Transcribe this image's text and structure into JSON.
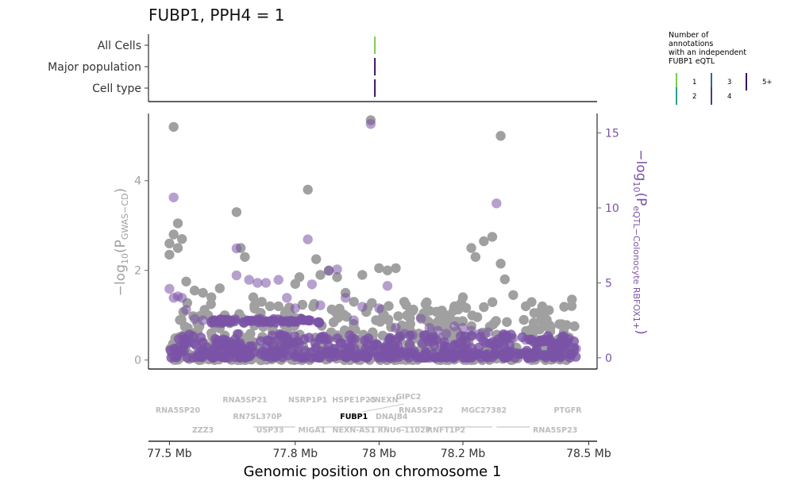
{
  "chart_data": {
    "type": "scatter",
    "title": "FUBP1, PPH4 = 1",
    "xlabel": "Genomic position on chromosome 1",
    "x_unit": "Mb",
    "xlim": [
      77.45,
      78.52
    ],
    "x_ticks": [
      77.5,
      77.8,
      78.0,
      78.2,
      78.5
    ],
    "x_tick_labels": [
      "77.5 Mb",
      "77.8 Mb",
      "78 Mb",
      "78.2 Mb",
      "78.5 Mb"
    ],
    "annotation_track": {
      "rows": [
        "All Cells",
        "Major population",
        "Cell type"
      ],
      "marks": [
        {
          "row": "All Cells",
          "x": 77.99,
          "count_category": "1",
          "color": "#7dc94f"
        },
        {
          "row": "Major population",
          "x": 77.99,
          "count_category": "5+",
          "color": "#3b0f5a"
        },
        {
          "row": "Cell type",
          "x": 77.99,
          "count_category": "5+",
          "color": "#3b0f5a"
        }
      ],
      "legend": {
        "title_lines": [
          "Number of",
          "annotations",
          "with an independent",
          "FUBP1 eQTL"
        ],
        "entries": [
          {
            "label": "1",
            "color": "#7dc94f"
          },
          {
            "label": "2",
            "color": "#2aa08a"
          },
          {
            "label": "3",
            "color": "#31688e"
          },
          {
            "label": "4",
            "color": "#433e85"
          },
          {
            "label": "5+",
            "color": "#3b0f5a"
          }
        ],
        "placement": "top-right"
      }
    },
    "left_axis": {
      "label_main": "−log",
      "label_sub": "10",
      "label_var": "(P",
      "label_var_sub": "GWAS−CD",
      "label_close": ")",
      "ylim": [
        -0.2,
        5.5
      ],
      "ticks": [
        0,
        2,
        4
      ],
      "color": "#a0a0a0"
    },
    "right_axis": {
      "label_main": "−log",
      "label_sub": "10",
      "label_var": "(P",
      "label_var_sub": "eQTL−Colonocyte RBFOX1+",
      "label_close": ")",
      "ylim": [
        -0.75,
        16.3
      ],
      "ticks": [
        0,
        5,
        10,
        15
      ],
      "color": "#7a52a6"
    },
    "series": [
      {
        "name": "GWAS-CD",
        "color": "#a0a0a0",
        "axis": "left",
        "points_estimated": [
          [
            77.51,
            5.2
          ],
          [
            77.52,
            3.05
          ],
          [
            77.51,
            2.8
          ],
          [
            77.5,
            2.6
          ],
          [
            77.52,
            2.5
          ],
          [
            77.5,
            2.35
          ],
          [
            77.53,
            2.7
          ],
          [
            77.54,
            1.75
          ],
          [
            77.56,
            1.55
          ],
          [
            77.58,
            1.5
          ],
          [
            77.6,
            1.4
          ],
          [
            77.62,
            1.6
          ],
          [
            77.66,
            3.3
          ],
          [
            77.67,
            2.5
          ],
          [
            77.68,
            2.3
          ],
          [
            77.7,
            1.4
          ],
          [
            77.72,
            1.3
          ],
          [
            77.74,
            1.2
          ],
          [
            77.76,
            1.2
          ],
          [
            77.78,
            1.1
          ],
          [
            77.8,
            1.7
          ],
          [
            77.81,
            1.85
          ],
          [
            77.83,
            3.8
          ],
          [
            77.85,
            2.25
          ],
          [
            77.86,
            1.9
          ],
          [
            77.88,
            2.0
          ],
          [
            77.9,
            1.85
          ],
          [
            77.92,
            1.5
          ],
          [
            77.94,
            1.3
          ],
          [
            77.96,
            1.9
          ],
          [
            77.98,
            5.35
          ],
          [
            78.0,
            2.05
          ],
          [
            78.02,
            2.0
          ],
          [
            78.04,
            2.05
          ],
          [
            78.06,
            1.3
          ],
          [
            78.08,
            1.1
          ],
          [
            78.1,
            0.95
          ],
          [
            78.12,
            1.1
          ],
          [
            78.14,
            0.85
          ],
          [
            78.16,
            1.0
          ],
          [
            78.18,
            1.2
          ],
          [
            78.2,
            1.4
          ],
          [
            78.22,
            2.5
          ],
          [
            78.23,
            2.3
          ],
          [
            78.25,
            2.65
          ],
          [
            78.27,
            2.75
          ],
          [
            78.29,
            2.15
          ],
          [
            78.3,
            1.8
          ],
          [
            78.32,
            1.45
          ],
          [
            78.35,
            1.2
          ],
          [
            78.37,
            1.05
          ],
          [
            78.4,
            0.9
          ],
          [
            78.43,
            0.8
          ],
          [
            78.46,
            1.35
          ],
          [
            78.29,
            5.0
          ],
          [
            78.15,
            0.75
          ],
          [
            77.6,
            0.6
          ],
          [
            77.9,
            0.55
          ],
          [
            78.05,
            0.5
          ],
          [
            78.4,
            0.4
          ]
        ]
      },
      {
        "name": "eQTL-Colonocyte RBFOX1+",
        "color": "#7a52a6",
        "axis": "right",
        "points_estimated": [
          [
            77.51,
            10.7
          ],
          [
            77.5,
            4.6
          ],
          [
            77.51,
            4.0
          ],
          [
            77.52,
            4.1
          ],
          [
            77.53,
            4.0
          ],
          [
            77.54,
            3.2
          ],
          [
            77.56,
            2.6
          ],
          [
            77.58,
            2.5
          ],
          [
            77.6,
            2.4
          ],
          [
            77.62,
            2.3
          ],
          [
            77.64,
            2.4
          ],
          [
            77.66,
            7.3
          ],
          [
            77.66,
            5.5
          ],
          [
            77.69,
            5.2
          ],
          [
            77.71,
            5.0
          ],
          [
            77.73,
            5.0
          ],
          [
            77.76,
            5.2
          ],
          [
            77.78,
            4.0
          ],
          [
            77.8,
            3.3
          ],
          [
            77.83,
            7.9
          ],
          [
            77.84,
            4.9
          ],
          [
            77.86,
            3.5
          ],
          [
            77.88,
            5.8
          ],
          [
            77.9,
            5.9
          ],
          [
            77.92,
            4.0
          ],
          [
            77.94,
            2.5
          ],
          [
            77.96,
            3.4
          ],
          [
            77.98,
            15.6
          ],
          [
            78.0,
            3.3
          ],
          [
            78.02,
            4.8
          ],
          [
            78.04,
            2.0
          ],
          [
            78.06,
            1.6
          ],
          [
            78.08,
            1.5
          ],
          [
            78.1,
            2.6
          ],
          [
            78.12,
            2.0
          ],
          [
            78.14,
            1.8
          ],
          [
            78.16,
            1.6
          ],
          [
            78.18,
            2.1
          ],
          [
            78.2,
            2.0
          ],
          [
            78.22,
            1.8
          ],
          [
            78.24,
            1.6
          ],
          [
            78.26,
            1.7
          ],
          [
            78.28,
            10.3
          ],
          [
            78.3,
            1.4
          ],
          [
            78.32,
            1.3
          ],
          [
            78.35,
            1.2
          ],
          [
            78.38,
            1.0
          ],
          [
            78.41,
            0.9
          ],
          [
            78.44,
            0.8
          ],
          [
            78.47,
            0.6
          ]
        ]
      }
    ],
    "genes": [
      {
        "name": "RNA5SP20",
        "x": 77.52,
        "row": 2,
        "strand": ""
      },
      {
        "name": "ZZZ3",
        "x": 77.58,
        "row": 4,
        "strand": ""
      },
      {
        "name": "RNA5SP21",
        "x": 77.68,
        "row": 1,
        "strand": ">"
      },
      {
        "name": "RN7SL370P",
        "x": 77.71,
        "row": 3,
        "strand": ""
      },
      {
        "name": "USP33",
        "x": 77.74,
        "row": 4,
        "strand": "<"
      },
      {
        "name": "NSRP1P1",
        "x": 77.83,
        "row": 1,
        "strand": ">"
      },
      {
        "name": "MIGA1",
        "x": 77.84,
        "row": 4,
        "strand": ">"
      },
      {
        "name": "HSPE1P25",
        "x": 77.94,
        "row": 1,
        "strand": ""
      },
      {
        "name": "FUBP1",
        "x": 77.94,
        "row": 3,
        "strand": "<",
        "highlight": true
      },
      {
        "name": "NEXN-AS1",
        "x": 77.94,
        "row": 4,
        "strand": "<"
      },
      {
        "name": "<NEXN",
        "x": 78.01,
        "row": 1,
        "strand": ""
      },
      {
        "name": "DNAJB4",
        "x": 78.03,
        "row": 3,
        "strand": ""
      },
      {
        "name": "RNU6-1102P",
        "x": 78.06,
        "row": 4,
        "strand": ""
      },
      {
        "name": "GIPC2",
        "x": 78.07,
        "row": 0,
        "strand": ""
      },
      {
        "name": "RNA5SP22",
        "x": 78.1,
        "row": 2,
        "strand": ""
      },
      {
        "name": "RNFT1P2",
        "x": 78.16,
        "row": 4,
        "strand": "<"
      },
      {
        "name": "MGC27382",
        "x": 78.25,
        "row": 2,
        "strand": "<"
      },
      {
        "name": "PTGFR",
        "x": 78.45,
        "row": 2,
        "strand": ""
      },
      {
        "name": "RNA5SP23",
        "x": 78.42,
        "row": 4,
        "strand": ""
      }
    ],
    "grid": false
  }
}
